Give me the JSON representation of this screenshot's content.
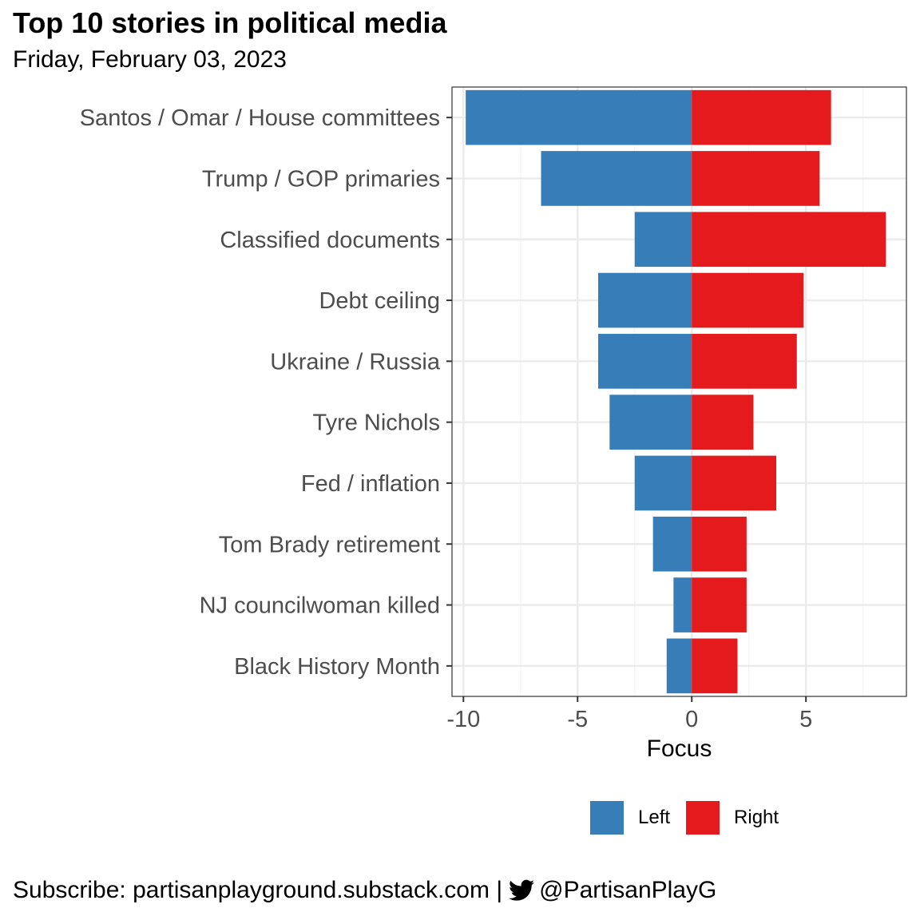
{
  "title": "Top 10 stories in political media",
  "subtitle": "Friday, February 03, 2023",
  "footer": {
    "text": "Subscribe: partisanplayground.substack.com |",
    "handle": "@PartisanPlayG",
    "icon": "twitter-bird-icon"
  },
  "chart_data": {
    "type": "bar",
    "orientation": "horizontal",
    "stacked": "diverging",
    "categories": [
      "Santos / Omar / House committees",
      "Trump / GOP primaries",
      "Classified documents",
      "Debt ceiling",
      "Ukraine / Russia",
      "Tyre Nichols",
      "Fed / inflation",
      "Tom Brady retirement",
      "NJ councilwoman killed",
      "Black History Month"
    ],
    "series": [
      {
        "name": "Left",
        "color": "#377eb8",
        "values": [
          -9.9,
          -6.6,
          -2.5,
          -4.1,
          -4.1,
          -3.6,
          -2.5,
          -1.7,
          -0.8,
          -1.1
        ]
      },
      {
        "name": "Right",
        "color": "#e41a1c",
        "values": [
          6.1,
          5.6,
          8.5,
          4.9,
          4.6,
          2.7,
          3.7,
          2.4,
          2.4,
          2.0
        ]
      }
    ],
    "xlabel": "Focus",
    "ylabel": "",
    "xlim": [
      -10.5,
      9.4
    ],
    "xticks": [
      "-10",
      "-5",
      "0",
      "5"
    ],
    "grid": true,
    "legend_position": "bottom"
  }
}
